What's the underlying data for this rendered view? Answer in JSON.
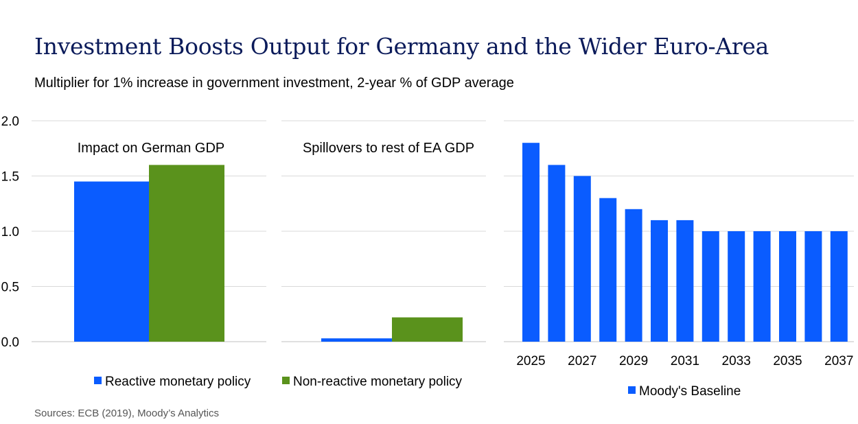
{
  "title": "Investment Boosts Output for Germany and the Wider Euro-Area",
  "subtitle": "Multiplier for 1% increase in government investment, 2-year % of GDP average",
  "source": "Sources: ECB (2019), Moody’s Analytics",
  "colors": {
    "blue": "#0a5cff",
    "green": "#5a921c",
    "grid": "#d9d9d9",
    "title": "#0b1b5a"
  },
  "chart_data": [
    {
      "type": "bar",
      "panel_title": "Impact on German GDP",
      "series": [
        {
          "name": "Reactive monetary policy",
          "values": [
            1.45
          ]
        },
        {
          "name": "Non-reactive monetary policy",
          "values": [
            1.6
          ]
        }
      ],
      "ylim": [
        0,
        2.0
      ],
      "yticks": [
        "0.0",
        "0.5",
        "1.0",
        "1.5",
        "2.0"
      ],
      "grid": true
    },
    {
      "type": "bar",
      "panel_title": "Spillovers to rest of EA GDP",
      "series": [
        {
          "name": "Reactive monetary policy",
          "values": [
            0.03
          ]
        },
        {
          "name": "Non-reactive monetary policy",
          "values": [
            0.22
          ]
        }
      ],
      "ylim": [
        0,
        2.0
      ],
      "grid": true
    },
    {
      "type": "bar",
      "categories": [
        "2025",
        "2026",
        "2027",
        "2028",
        "2029",
        "2030",
        "2031",
        "2032",
        "2033",
        "2034",
        "2035",
        "2036",
        "2037"
      ],
      "xtick_labels": [
        "2025",
        "2027",
        "2029",
        "2031",
        "2033",
        "2035",
        "2037"
      ],
      "series": [
        {
          "name": "Moody's Baseline",
          "values": [
            1.8,
            1.6,
            1.5,
            1.3,
            1.2,
            1.1,
            1.1,
            1.0,
            1.0,
            1.0,
            1.0,
            1.0,
            1.0
          ]
        }
      ],
      "ylim": [
        0,
        2.0
      ],
      "grid": true
    }
  ],
  "legend_left": [
    "Reactive monetary policy",
    "Non-reactive monetary policy"
  ],
  "legend_right": [
    "Moody's Baseline"
  ]
}
